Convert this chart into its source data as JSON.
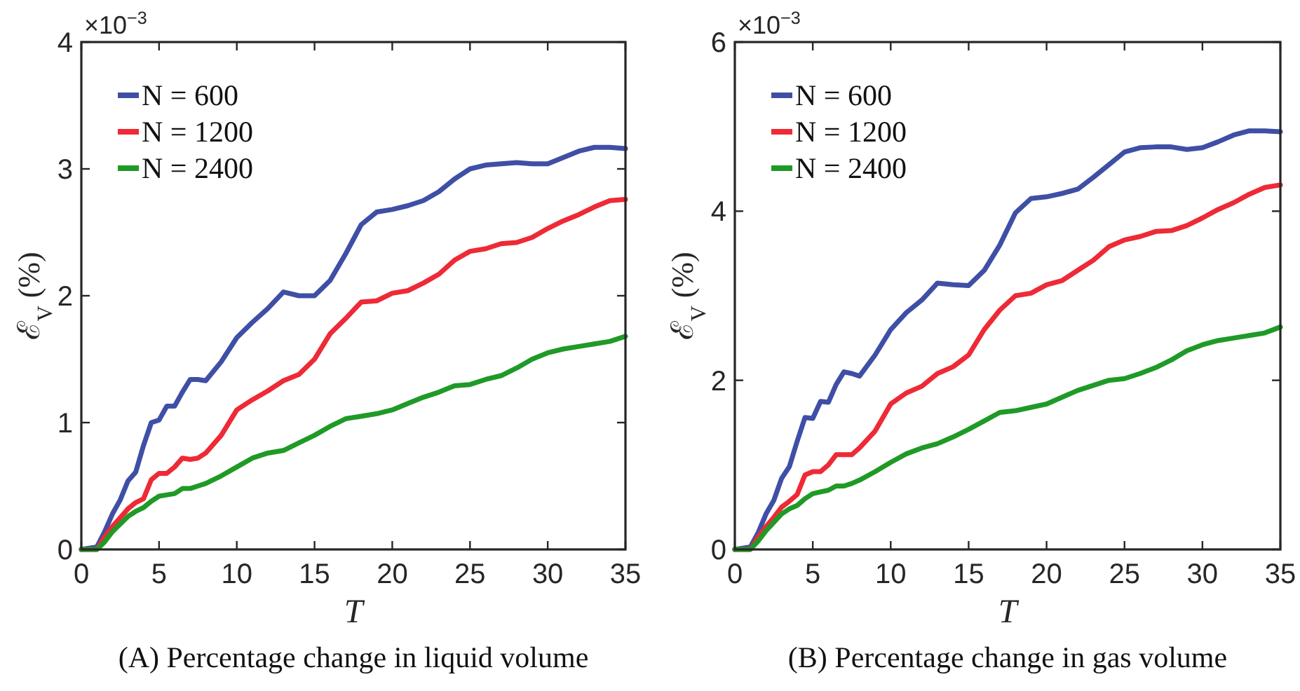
{
  "chart_data": [
    {
      "type": "line",
      "xlabel": "T",
      "xlim": [
        0,
        35
      ],
      "ylim": [
        0,
        4
      ],
      "xticks": [
        0,
        5,
        10,
        15,
        20,
        25,
        30,
        35
      ],
      "yticks": [
        0,
        1,
        2,
        3,
        4
      ],
      "legend": "top left",
      "ylabel": "ℰ$_{V}$ (%)",
      "grid": false,
      "annotations": [
        "×10$^{−3}$",
        "(A)  Percentage change in liquid volume"
      ],
      "x": [
        0,
        1,
        1.5,
        2,
        2.5,
        3,
        3.5,
        4,
        4.5,
        5,
        5.5,
        6,
        6.5,
        7,
        7.5,
        8,
        9,
        10,
        11,
        12,
        13,
        14,
        15,
        16,
        17,
        18,
        19,
        20,
        21,
        22,
        23,
        24,
        25,
        26,
        27,
        28,
        29,
        30,
        31,
        32,
        33,
        34,
        35
      ],
      "series": [
        {
          "name": "N = 600",
          "color": "#3f4fa5",
          "values": [
            0,
            0.02,
            0.14,
            0.28,
            0.39,
            0.54,
            0.61,
            0.82,
            1.0,
            1.02,
            1.13,
            1.13,
            1.24,
            1.34,
            1.34,
            1.33,
            1.48,
            1.67,
            1.79,
            1.9,
            2.03,
            2.0,
            2.0,
            2.12,
            2.33,
            2.56,
            2.66,
            2.68,
            2.71,
            2.75,
            2.82,
            2.92,
            3.0,
            3.03,
            3.04,
            3.05,
            3.04,
            3.04,
            3.09,
            3.14,
            3.17,
            3.17,
            3.16
          ]
        },
        {
          "name": "N = 1200",
          "color": "#ee2a36",
          "values": [
            0,
            0,
            0.1,
            0.18,
            0.25,
            0.32,
            0.37,
            0.4,
            0.55,
            0.6,
            0.6,
            0.65,
            0.72,
            0.71,
            0.72,
            0.76,
            0.9,
            1.1,
            1.18,
            1.25,
            1.33,
            1.38,
            1.5,
            1.7,
            1.82,
            1.95,
            1.96,
            2.02,
            2.04,
            2.1,
            2.17,
            2.28,
            2.35,
            2.37,
            2.41,
            2.42,
            2.46,
            2.53,
            2.59,
            2.64,
            2.7,
            2.75,
            2.76
          ]
        },
        {
          "name": "N = 2400",
          "color": "#1f9a26",
          "values": [
            0,
            0,
            0.06,
            0.14,
            0.2,
            0.26,
            0.3,
            0.33,
            0.38,
            0.42,
            0.43,
            0.44,
            0.48,
            0.48,
            0.5,
            0.52,
            0.58,
            0.65,
            0.72,
            0.76,
            0.78,
            0.84,
            0.9,
            0.97,
            1.03,
            1.05,
            1.07,
            1.1,
            1.15,
            1.2,
            1.24,
            1.29,
            1.3,
            1.34,
            1.37,
            1.43,
            1.5,
            1.55,
            1.58,
            1.6,
            1.62,
            1.64,
            1.68
          ]
        }
      ]
    },
    {
      "type": "line",
      "xlabel": "T",
      "xlim": [
        0,
        35
      ],
      "ylim": [
        0,
        6
      ],
      "xticks": [
        0,
        5,
        10,
        15,
        20,
        25,
        30,
        35
      ],
      "yticks": [
        0,
        2,
        4,
        6
      ],
      "legend": "top left",
      "ylabel": "ℰ$_{V}$ (%)",
      "grid": false,
      "annotations": [
        "×10$^{−3}$",
        "(B)  Percentage change in gas volume"
      ],
      "x": [
        0,
        1,
        1.5,
        2,
        2.5,
        3,
        3.5,
        4,
        4.5,
        5,
        5.5,
        6,
        6.5,
        7,
        7.5,
        8,
        9,
        10,
        11,
        12,
        13,
        14,
        15,
        16,
        17,
        18,
        19,
        20,
        21,
        22,
        23,
        24,
        25,
        26,
        27,
        28,
        29,
        30,
        31,
        32,
        33,
        34,
        35
      ],
      "series": [
        {
          "name": "N = 600",
          "color": "#3f4fa5",
          "values": [
            0,
            0.03,
            0.2,
            0.42,
            0.58,
            0.84,
            0.98,
            1.28,
            1.56,
            1.55,
            1.75,
            1.74,
            1.95,
            2.1,
            2.08,
            2.05,
            2.3,
            2.6,
            2.8,
            2.95,
            3.15,
            3.13,
            3.12,
            3.3,
            3.6,
            3.98,
            4.15,
            4.17,
            4.21,
            4.26,
            4.4,
            4.55,
            4.7,
            4.75,
            4.76,
            4.76,
            4.73,
            4.75,
            4.82,
            4.9,
            4.95,
            4.95,
            4.94
          ]
        },
        {
          "name": "N = 1200",
          "color": "#ee2a36",
          "values": [
            0,
            0,
            0.15,
            0.27,
            0.38,
            0.5,
            0.57,
            0.65,
            0.88,
            0.92,
            0.92,
            1.0,
            1.12,
            1.12,
            1.12,
            1.2,
            1.4,
            1.72,
            1.85,
            1.93,
            2.08,
            2.16,
            2.3,
            2.6,
            2.83,
            3.0,
            3.03,
            3.13,
            3.18,
            3.3,
            3.42,
            3.58,
            3.66,
            3.7,
            3.76,
            3.77,
            3.83,
            3.92,
            4.02,
            4.1,
            4.2,
            4.28,
            4.31
          ]
        },
        {
          "name": "N = 2400",
          "color": "#1f9a26",
          "values": [
            0,
            0,
            0.1,
            0.22,
            0.32,
            0.42,
            0.48,
            0.52,
            0.6,
            0.66,
            0.68,
            0.7,
            0.75,
            0.75,
            0.78,
            0.82,
            0.92,
            1.03,
            1.13,
            1.2,
            1.25,
            1.33,
            1.42,
            1.52,
            1.62,
            1.64,
            1.68,
            1.72,
            1.8,
            1.88,
            1.94,
            2.0,
            2.02,
            2.08,
            2.15,
            2.24,
            2.35,
            2.42,
            2.47,
            2.5,
            2.53,
            2.56,
            2.63
          ]
        }
      ]
    }
  ]
}
